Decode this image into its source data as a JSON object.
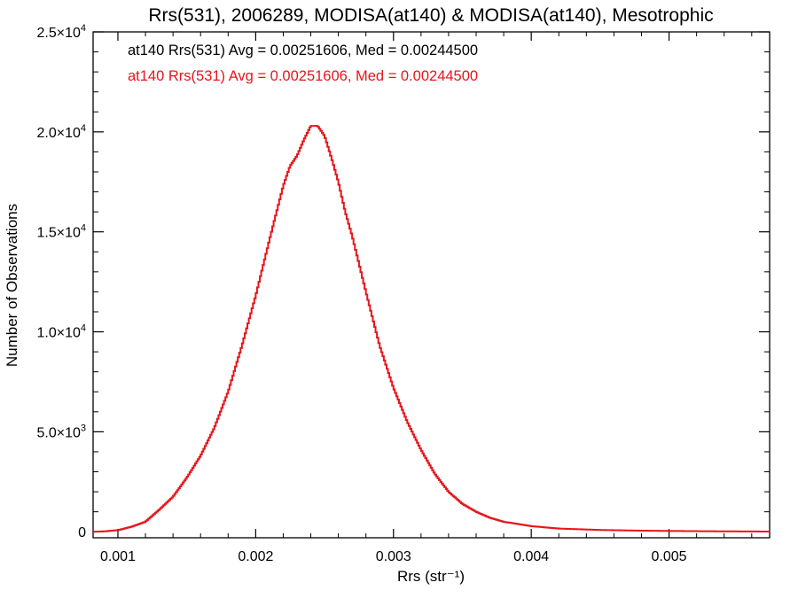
{
  "chart_data": {
    "type": "line",
    "step": true,
    "title": "Rrs(531), 2006289, MODISA(at140) & MODISA(at140), Mesotrophic",
    "xlabel": "Rrs (str⁻¹)",
    "ylabel": "Number of Observations",
    "xlim": [
      0.00082,
      0.00573
    ],
    "ylim": [
      -300,
      25000
    ],
    "x_ticks": [
      0.001,
      0.002,
      0.003,
      0.004,
      0.005
    ],
    "x_tick_labels": [
      "0.001",
      "0.002",
      "0.003",
      "0.004",
      "0.005"
    ],
    "y_ticks": [
      0,
      5000,
      10000,
      15000,
      20000,
      25000
    ],
    "y_tick_labels": [
      {
        "mantissa": "0",
        "exponent": ""
      },
      {
        "mantissa": "5.0×10",
        "exponent": "3"
      },
      {
        "mantissa": "1.0×10",
        "exponent": "4"
      },
      {
        "mantissa": "1.5×10",
        "exponent": "4"
      },
      {
        "mantissa": "2.0×10",
        "exponent": "4"
      },
      {
        "mantissa": "2.5×10",
        "exponent": "4"
      }
    ],
    "legend_placement": "top-left",
    "legend": [
      {
        "text": "at140 Rrs(531) Avg = 0.00251606, Med = 0.00244500",
        "color": "#000000"
      },
      {
        "text": "at140 Rrs(531) Avg = 0.00251606, Med = 0.00244500",
        "color": "#e8141c"
      }
    ],
    "series": [
      {
        "color": "#e8141c",
        "points": [
          [
            0.00082,
            0
          ],
          [
            0.0009,
            20
          ],
          [
            0.001,
            80
          ],
          [
            0.0011,
            250
          ],
          [
            0.0012,
            500
          ],
          [
            0.0013,
            1100
          ],
          [
            0.0014,
            1750
          ],
          [
            0.0015,
            2700
          ],
          [
            0.0016,
            3800
          ],
          [
            0.0017,
            5200
          ],
          [
            0.0018,
            7000
          ],
          [
            0.0019,
            9300
          ],
          [
            0.002,
            11800
          ],
          [
            0.0021,
            14600
          ],
          [
            0.0022,
            17300
          ],
          [
            0.00225,
            18300
          ],
          [
            0.0023,
            18800
          ],
          [
            0.00235,
            19600
          ],
          [
            0.0024,
            20300
          ],
          [
            0.00245,
            20300
          ],
          [
            0.0025,
            19800
          ],
          [
            0.00255,
            18700
          ],
          [
            0.0026,
            17500
          ],
          [
            0.00265,
            16000
          ],
          [
            0.0027,
            14800
          ],
          [
            0.0028,
            12000
          ],
          [
            0.0029,
            9300
          ],
          [
            0.003,
            7200
          ],
          [
            0.0031,
            5500
          ],
          [
            0.0032,
            4100
          ],
          [
            0.0033,
            2900
          ],
          [
            0.0034,
            2000
          ],
          [
            0.0035,
            1400
          ],
          [
            0.0036,
            1000
          ],
          [
            0.0037,
            700
          ],
          [
            0.0038,
            500
          ],
          [
            0.004,
            280
          ],
          [
            0.0042,
            160
          ],
          [
            0.0045,
            90
          ],
          [
            0.0048,
            55
          ],
          [
            0.005,
            40
          ],
          [
            0.0053,
            25
          ],
          [
            0.0056,
            15
          ],
          [
            0.00573,
            10
          ]
        ]
      }
    ]
  }
}
